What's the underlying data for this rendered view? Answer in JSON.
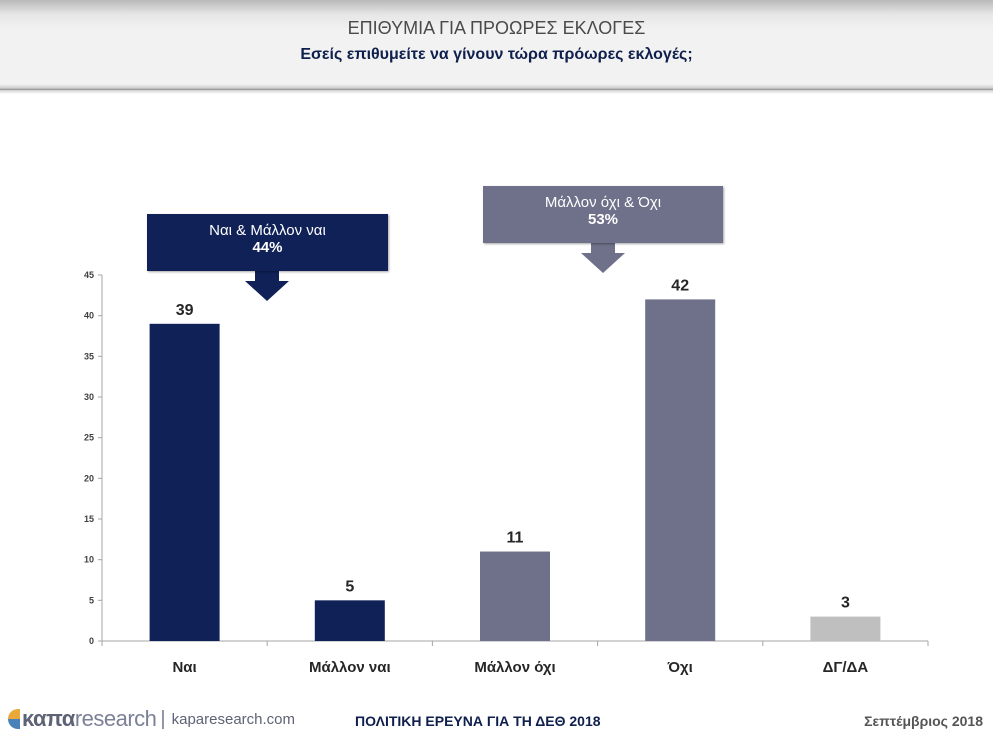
{
  "header": {
    "title": "ΕΠΙΘΥΜΙΑ ΓΙΑ ΠΡΟΩΡΕΣ ΕΚΛΟΓΕΣ",
    "subtitle": "Εσείς επιθυμείτε να γίνουν τώρα πρόωρες εκλογές;"
  },
  "callouts": [
    {
      "label": "Ναι & Μάλλον ναι",
      "value": "44%",
      "color": "#0f2157"
    },
    {
      "label": "Μάλλον όχι & Όχι",
      "value": "53%",
      "color": "#6e7189"
    }
  ],
  "chart_data": {
    "type": "bar",
    "title": "ΕΠΙΘΥΜΙΑ ΓΙΑ ΠΡΟΩΡΕΣ ΕΚΛΟΓΕΣ",
    "subtitle": "Εσείς επιθυμείτε να γίνουν τώρα πρόωρες εκλογές;",
    "categories": [
      "Ναι",
      "Μάλλον ναι",
      "Μάλλον όχι",
      "Όχι",
      "ΔΓ/ΔΑ"
    ],
    "values": [
      39,
      5,
      11,
      42,
      3
    ],
    "data_labels": [
      "39",
      "5",
      "11",
      "42",
      "3"
    ],
    "colors": [
      "#0f2157",
      "#0f2157",
      "#6e7189",
      "#6e7189",
      "#bfbfbf"
    ],
    "xlabel": "",
    "ylabel": "",
    "ylim": [
      0,
      45
    ],
    "yticks": [
      0,
      5,
      10,
      15,
      20,
      25,
      30,
      35,
      40,
      45
    ],
    "grid": false,
    "legend": "none"
  },
  "footer": {
    "logo_bold": "καπα",
    "logo_light": "research",
    "separator": "|",
    "url": "kaparesearch.com",
    "center": "ΠΟΛΙΤΙΚΗ ΕΡΕΥΝΑ ΓΙΑ ΤΗ ΔΕΘ 2018",
    "date": "Σεπτέμβριος 2018"
  }
}
